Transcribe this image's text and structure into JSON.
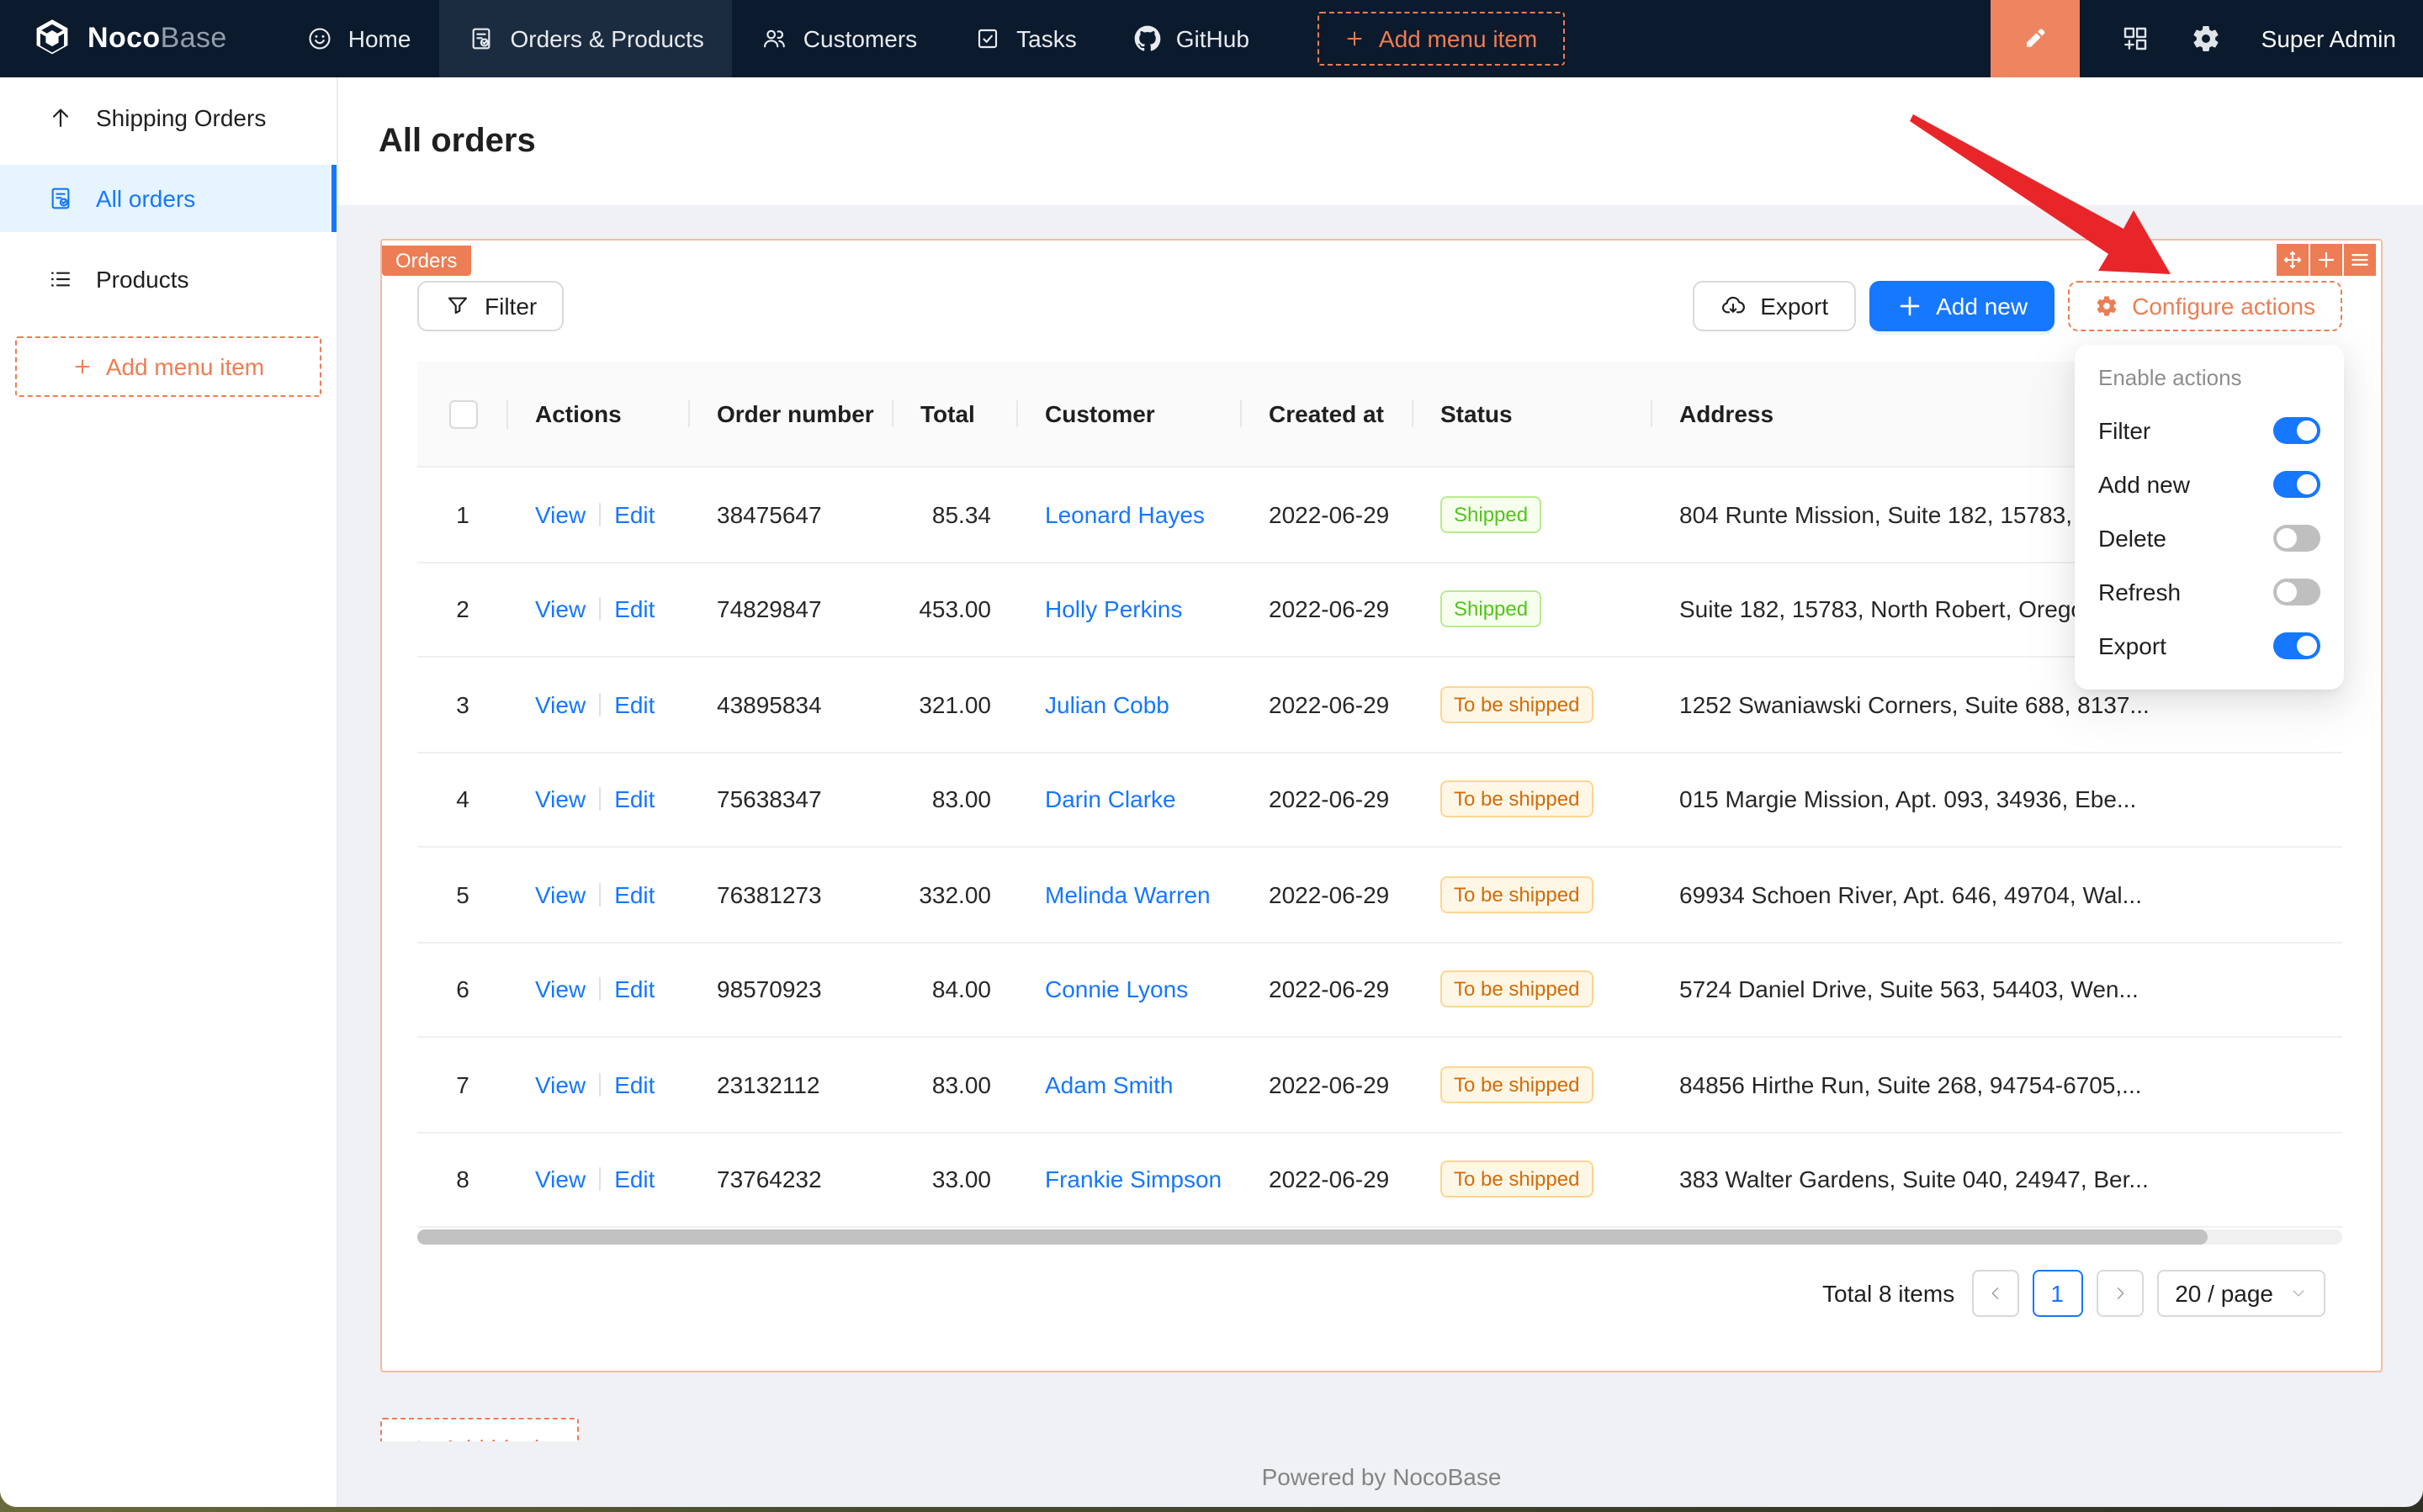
{
  "colors": {
    "nav_bg": "#0b1a2d",
    "nav_active_bg": "#1c2c40",
    "designer_orange": "#ed7d54",
    "block_border": "#f3bda1",
    "primary_blue": "#1677ff",
    "selected_menu_bg": "#e6f4ff",
    "content_bg": "#eff1f4",
    "arrow_red": "#e8262a",
    "status_green": "#52c41a",
    "status_orange": "#d46b08"
  },
  "topnav": {
    "brand": {
      "noco": "Noco",
      "base": "Base"
    },
    "items": [
      {
        "label": "Home",
        "icon": "smile-icon",
        "active": false
      },
      {
        "label": "Orders & Products",
        "icon": "form-check-icon",
        "active": true
      },
      {
        "label": "Customers",
        "icon": "team-icon",
        "active": false
      },
      {
        "label": "Tasks",
        "icon": "check-square-icon",
        "active": false
      },
      {
        "label": "GitHub",
        "icon": "github-icon",
        "active": false
      }
    ],
    "add_menu_item_label": "Add menu item",
    "user": "Super Admin"
  },
  "sidebar": {
    "items": [
      {
        "label": "Shipping Orders",
        "icon": "arrow-up-icon",
        "active": false
      },
      {
        "label": "All orders",
        "icon": "file-done-icon",
        "active": true
      },
      {
        "label": "Products",
        "icon": "list-icon",
        "active": false
      }
    ],
    "add_menu_item_label": "Add menu item"
  },
  "page": {
    "title": "All orders"
  },
  "block": {
    "tag": "Orders",
    "toolbar": {
      "filter": "Filter",
      "export": "Export",
      "add_new": "Add new",
      "configure_actions": "Configure actions"
    }
  },
  "dropdown": {
    "header": "Enable actions",
    "items": [
      {
        "label": "Filter",
        "enabled": true
      },
      {
        "label": "Add new",
        "enabled": true
      },
      {
        "label": "Delete",
        "enabled": false
      },
      {
        "label": "Refresh",
        "enabled": false
      },
      {
        "label": "Export",
        "enabled": true
      }
    ]
  },
  "table": {
    "columns": [
      {
        "key": "select",
        "label": ""
      },
      {
        "key": "actions",
        "label": "Actions"
      },
      {
        "key": "order_number",
        "label": "Order number"
      },
      {
        "key": "total",
        "label": "Total"
      },
      {
        "key": "customer",
        "label": "Customer"
      },
      {
        "key": "created_at",
        "label": "Created at"
      },
      {
        "key": "status",
        "label": "Status"
      },
      {
        "key": "address",
        "label": "Address"
      }
    ],
    "action_labels": [
      "View",
      "Edit"
    ],
    "rows": [
      {
        "index": 1,
        "order_number": "38475647",
        "total": "85.34",
        "customer": "Leonard Hayes",
        "created_at": "2022-06-29",
        "status": "Shipped",
        "status_color": "green",
        "address": "804 Runte Mission, Suite 182, 15783, N..."
      },
      {
        "index": 2,
        "order_number": "74829847",
        "total": "453.00",
        "customer": "Holly Perkins",
        "created_at": "2022-06-29",
        "status": "Shipped",
        "status_color": "green",
        "address": "Suite 182, 15783, North Robert, Oregon..."
      },
      {
        "index": 3,
        "order_number": "43895834",
        "total": "321.00",
        "customer": "Julian Cobb",
        "created_at": "2022-06-29",
        "status": "To be shipped",
        "status_color": "orange",
        "address": "1252 Swaniawski Corners, Suite 688, 8137..."
      },
      {
        "index": 4,
        "order_number": "75638347",
        "total": "83.00",
        "customer": "Darin Clarke",
        "created_at": "2022-06-29",
        "status": "To be shipped",
        "status_color": "orange",
        "address": "015 Margie Mission, Apt. 093, 34936, Ebe..."
      },
      {
        "index": 5,
        "order_number": "76381273",
        "total": "332.00",
        "customer": "Melinda Warren",
        "created_at": "2022-06-29",
        "status": "To be shipped",
        "status_color": "orange",
        "address": "69934 Schoen River, Apt. 646, 49704, Wal..."
      },
      {
        "index": 6,
        "order_number": "98570923",
        "total": "84.00",
        "customer": "Connie Lyons",
        "created_at": "2022-06-29",
        "status": "To be shipped",
        "status_color": "orange",
        "address": "5724 Daniel Drive, Suite 563, 54403, Wen..."
      },
      {
        "index": 7,
        "order_number": "23132112",
        "total": "83.00",
        "customer": "Adam Smith",
        "created_at": "2022-06-29",
        "status": "To be shipped",
        "status_color": "orange",
        "address": "84856 Hirthe Run, Suite 268, 94754-6705,..."
      },
      {
        "index": 8,
        "order_number": "73764232",
        "total": "33.00",
        "customer": "Frankie Simpson",
        "created_at": "2022-06-29",
        "status": "To be shipped",
        "status_color": "orange",
        "address": "383 Walter Gardens, Suite 040, 24947, Ber..."
      }
    ]
  },
  "pagination": {
    "total_label": "Total 8 items",
    "current_page": "1",
    "page_size_label": "20 / page"
  },
  "add_block_label": "Add block",
  "footer": "Powered by NocoBase"
}
